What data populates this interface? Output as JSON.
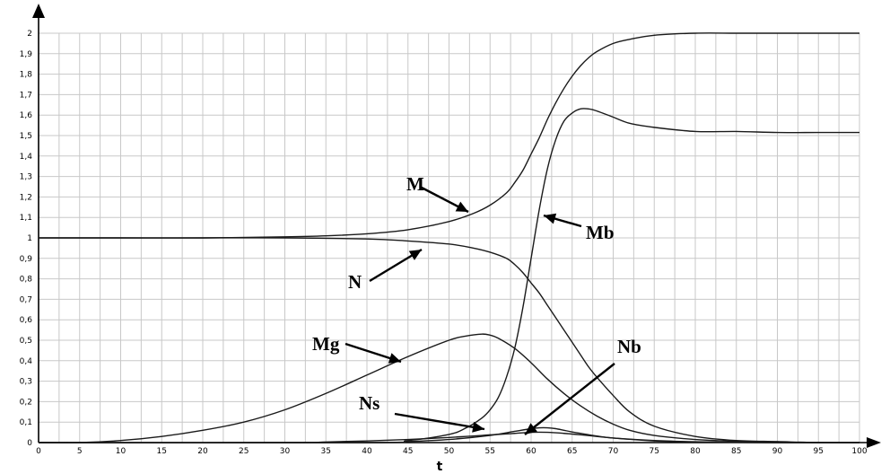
{
  "chart_data": {
    "type": "line",
    "title": "",
    "xlabel": "t",
    "ylabel": "",
    "xlim": [
      0,
      100
    ],
    "ylim": [
      0,
      2
    ],
    "grid": true,
    "x_ticks": [
      "0",
      "5",
      "10",
      "15",
      "20",
      "25",
      "30",
      "35",
      "40",
      "45",
      "50",
      "55",
      "60",
      "65",
      "70",
      "75",
      "80",
      "85",
      "90",
      "95",
      "100"
    ],
    "y_ticks": [
      "0",
      "0,1",
      "0,2",
      "0,3",
      "0,4",
      "0,5",
      "0,6",
      "0,7",
      "0,8",
      "0,9",
      "1",
      "1,1",
      "1,2",
      "1,3",
      "1,4",
      "1,5",
      "1,6",
      "1,7",
      "1,8",
      "1,9",
      "2"
    ],
    "series": [
      {
        "name": "M",
        "x": [
          0,
          10,
          20,
          30,
          35,
          40,
          45,
          50,
          53,
          55,
          57,
          58,
          59,
          60,
          61,
          62,
          63,
          64,
          65,
          66,
          67,
          68,
          70,
          72,
          75,
          80,
          85,
          90,
          95,
          100
        ],
        "y": [
          1.0,
          1.0,
          1.0,
          1.005,
          1.01,
          1.02,
          1.04,
          1.08,
          1.12,
          1.16,
          1.22,
          1.27,
          1.33,
          1.41,
          1.49,
          1.58,
          1.66,
          1.73,
          1.79,
          1.84,
          1.88,
          1.91,
          1.95,
          1.97,
          1.99,
          2.0,
          2.0,
          2.0,
          2.0,
          2.0
        ]
      },
      {
        "name": "Mb",
        "x": [
          0,
          40,
          45,
          50,
          52,
          54,
          55,
          56,
          57,
          58,
          59,
          60,
          61,
          62,
          63,
          64,
          65,
          66,
          67,
          68,
          70,
          72,
          75,
          80,
          85,
          90,
          95,
          100
        ],
        "y": [
          0,
          0,
          0.01,
          0.04,
          0.07,
          0.12,
          0.16,
          0.22,
          0.32,
          0.46,
          0.66,
          0.9,
          1.14,
          1.34,
          1.48,
          1.57,
          1.61,
          1.63,
          1.63,
          1.62,
          1.59,
          1.56,
          1.54,
          1.52,
          1.52,
          1.515,
          1.515,
          1.515
        ]
      },
      {
        "name": "N",
        "x": [
          0,
          10,
          20,
          30,
          40,
          45,
          50,
          53,
          55,
          57,
          58,
          59,
          60,
          61,
          62,
          63,
          64,
          65,
          66,
          67,
          68,
          70,
          72,
          75,
          80,
          85,
          90,
          95,
          100
        ],
        "y": [
          1.0,
          1.0,
          1.0,
          1.0,
          0.995,
          0.985,
          0.97,
          0.95,
          0.93,
          0.9,
          0.87,
          0.83,
          0.78,
          0.73,
          0.67,
          0.61,
          0.55,
          0.49,
          0.43,
          0.37,
          0.32,
          0.23,
          0.15,
          0.08,
          0.03,
          0.01,
          0.005,
          0.0,
          0.0
        ]
      },
      {
        "name": "Mg",
        "x": [
          0,
          5,
          10,
          15,
          20,
          25,
          30,
          35,
          40,
          45,
          50,
          52,
          54,
          55,
          56,
          58,
          60,
          62,
          64,
          66,
          68,
          70,
          72,
          75,
          80,
          85,
          90,
          95,
          100
        ],
        "y": [
          0,
          0.0,
          0.01,
          0.03,
          0.06,
          0.1,
          0.16,
          0.24,
          0.33,
          0.42,
          0.5,
          0.52,
          0.53,
          0.525,
          0.51,
          0.46,
          0.39,
          0.31,
          0.24,
          0.18,
          0.13,
          0.09,
          0.06,
          0.035,
          0.015,
          0.006,
          0.002,
          0.0,
          0.0
        ]
      },
      {
        "name": "Ns",
        "x": [
          0,
          30,
          35,
          40,
          45,
          50,
          52,
          54,
          55,
          56,
          58,
          60,
          62,
          64,
          66,
          68,
          70,
          75,
          80,
          85,
          90,
          95,
          100
        ],
        "y": [
          0,
          0,
          0.003,
          0.008,
          0.015,
          0.025,
          0.03,
          0.035,
          0.038,
          0.04,
          0.045,
          0.05,
          0.05,
          0.045,
          0.038,
          0.03,
          0.022,
          0.01,
          0.004,
          0.001,
          0,
          0,
          0
        ]
      },
      {
        "name": "Nb",
        "x": [
          0,
          40,
          45,
          50,
          55,
          58,
          60,
          61,
          62,
          63,
          64,
          65,
          66,
          68,
          70,
          75,
          80,
          85,
          90,
          95,
          100
        ],
        "y": [
          0,
          0,
          0.005,
          0.015,
          0.035,
          0.055,
          0.068,
          0.072,
          0.072,
          0.068,
          0.06,
          0.052,
          0.045,
          0.032,
          0.022,
          0.008,
          0.003,
          0.001,
          0,
          0,
          0
        ]
      }
    ],
    "annotations": [
      {
        "text": "M"
      },
      {
        "text": "Mb"
      },
      {
        "text": "N"
      },
      {
        "text": "Mg"
      },
      {
        "text": "Nb"
      },
      {
        "text": "Ns"
      }
    ]
  }
}
